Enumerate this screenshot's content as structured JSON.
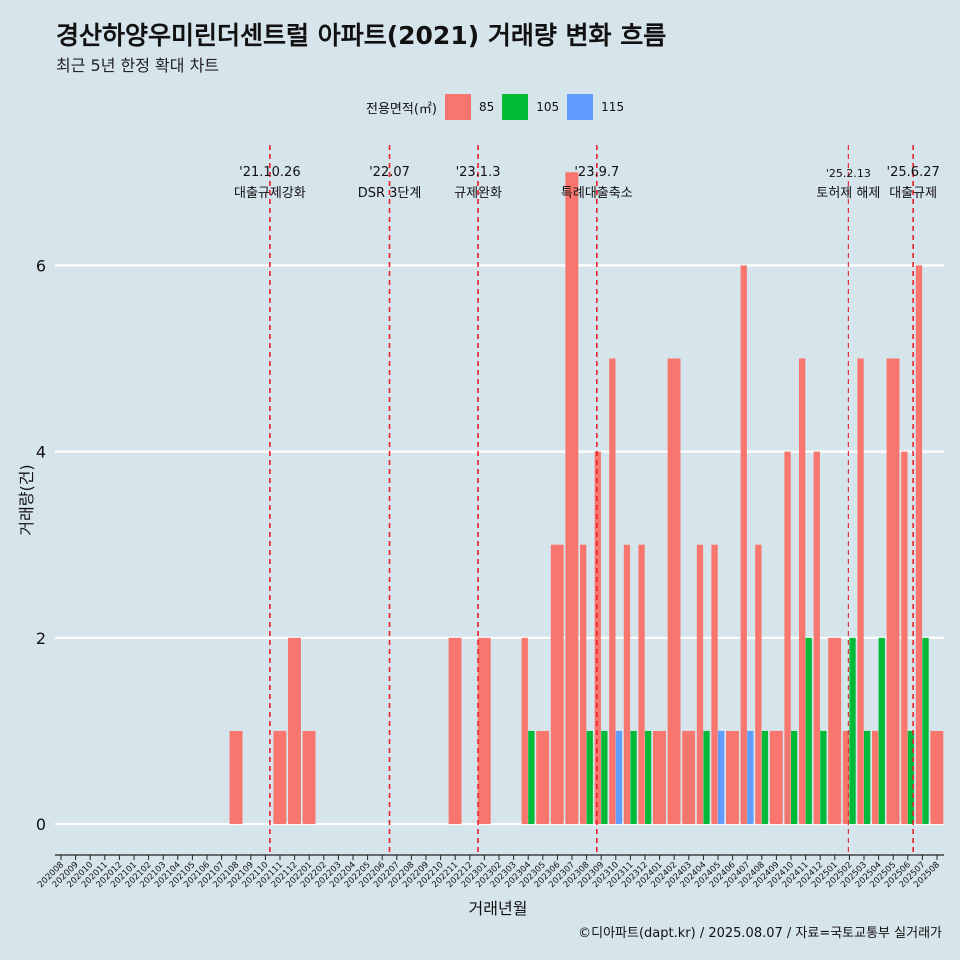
{
  "title": "경산하양우미린더센트럴 아파트(2021) 거래량 변화 흐름",
  "subtitle": "최근 5년 한정 확대 차트",
  "caption": "©디아파트(dapt.kr) / 2025.08.07 / 자료=국토교통부 실거래가",
  "legend": {
    "title": "전용면적(㎡)",
    "items": [
      {
        "label": "85",
        "color": "#f8766d"
      },
      {
        "label": "105",
        "color": "#00ba38"
      },
      {
        "label": "115",
        "color": "#619cff"
      }
    ]
  },
  "chart_data": {
    "type": "bar",
    "xlabel": "거래년월",
    "ylabel": "거래량(건)",
    "ylim": [
      -0.3,
      7.4
    ],
    "yticks": [
      0,
      2,
      4,
      6
    ],
    "grid": true,
    "legend_position": "top",
    "categories": [
      "202008",
      "202009",
      "202010",
      "202011",
      "202012",
      "202101",
      "202102",
      "202103",
      "202104",
      "202105",
      "202106",
      "202107",
      "202108",
      "202109",
      "202110",
      "202111",
      "202112",
      "202201",
      "202202",
      "202203",
      "202204",
      "202205",
      "202206",
      "202207",
      "202208",
      "202209",
      "202210",
      "202211",
      "202212",
      "202301",
      "202302",
      "202303",
      "202304",
      "202305",
      "202306",
      "202307",
      "202308",
      "202309",
      "202310",
      "202311",
      "202312",
      "202401",
      "202402",
      "202403",
      "202404",
      "202405",
      "202406",
      "202407",
      "202408",
      "202409",
      "202410",
      "202411",
      "202412",
      "202501",
      "202502",
      "202503",
      "202504",
      "202505",
      "202506",
      "202507",
      "202508"
    ],
    "series": [
      {
        "name": "85",
        "color": "#f8766d",
        "values": [
          0,
          0,
          0,
          0,
          0,
          0,
          0,
          0,
          0,
          0,
          0,
          0,
          1,
          0,
          0,
          1,
          2,
          1,
          0,
          0,
          0,
          0,
          0,
          0,
          0,
          0,
          0,
          2,
          0,
          2,
          0,
          0,
          2,
          1,
          3,
          7,
          3,
          4,
          5,
          3,
          3,
          1,
          5,
          1,
          3,
          3,
          1,
          6,
          3,
          1,
          4,
          5,
          4,
          2,
          1,
          5,
          1,
          5,
          4,
          6,
          1
        ]
      },
      {
        "name": "105",
        "color": "#00ba38",
        "values": [
          0,
          0,
          0,
          0,
          0,
          0,
          0,
          0,
          0,
          0,
          0,
          0,
          0,
          0,
          0,
          0,
          0,
          0,
          0,
          0,
          0,
          0,
          0,
          0,
          0,
          0,
          0,
          0,
          0,
          0,
          0,
          0,
          1,
          0,
          0,
          0,
          1,
          1,
          0,
          1,
          1,
          0,
          0,
          0,
          1,
          0,
          0,
          0,
          1,
          0,
          1,
          2,
          1,
          0,
          2,
          1,
          2,
          0,
          1,
          2,
          0
        ]
      },
      {
        "name": "115",
        "color": "#619cff",
        "values": [
          0,
          0,
          0,
          0,
          0,
          0,
          0,
          0,
          0,
          0,
          0,
          0,
          0,
          0,
          0,
          0,
          0,
          0,
          0,
          0,
          0,
          0,
          0,
          0,
          0,
          0,
          0,
          0,
          0,
          0,
          0,
          0,
          0,
          0,
          0,
          0,
          0,
          0,
          1,
          0,
          0,
          0,
          0,
          0,
          0,
          1,
          0,
          1,
          0,
          0,
          0,
          0,
          0,
          0,
          0,
          0,
          0,
          0,
          0,
          0,
          0
        ]
      }
    ],
    "annotations": [
      {
        "date": "'21.10.26",
        "label": "대출규제강화",
        "x": "2021-10-26"
      },
      {
        "date": "'22.07",
        "label": "DSR 3단계",
        "x": "2022-07-01"
      },
      {
        "date": "'23.1.3",
        "label": "규제완화",
        "x": "2023-01-03"
      },
      {
        "date": "'23.9.7",
        "label": "특례대출축소",
        "x": "2023-09-07"
      },
      {
        "date": "'25.2.13",
        "label": "토허제 해제",
        "x": "2025-02-13"
      },
      {
        "date": "'25.6.27",
        "label": "대출규제",
        "x": "2025-06-27"
      }
    ]
  }
}
